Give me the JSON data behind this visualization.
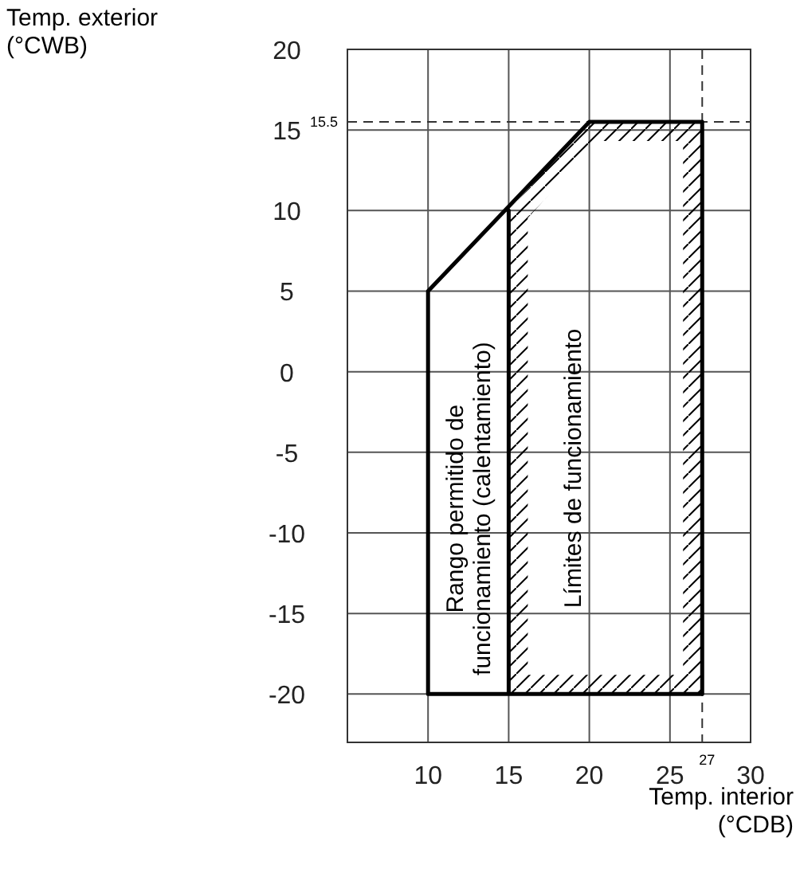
{
  "chart_data": {
    "type": "line",
    "xlabel": "Temp. interior\n(°CDB)",
    "ylabel": "Temp. exterior\n(°CWB)",
    "xlim": [
      5,
      30
    ],
    "ylim": [
      -23,
      20
    ],
    "xticks": [
      10,
      15,
      20,
      25,
      30
    ],
    "yticks": [
      -20,
      -15,
      -10,
      -5,
      0,
      5,
      10,
      15,
      20
    ],
    "grid": true,
    "series": [
      {
        "color": "#000000",
        "x": [
          15,
          15,
          10,
          10,
          20,
          27,
          27,
          15
        ],
        "values": [
          10,
          -20,
          -20,
          5,
          15.5,
          15.5,
          -20,
          -20
        ]
      }
    ],
    "ref_lines": [
      {
        "axis": "y",
        "value": 15.5,
        "label": "15.5",
        "line_style": "dashed",
        "color": "#333333"
      },
      {
        "axis": "x",
        "value": 27,
        "label": "27",
        "line_style": "dashed",
        "color": "#333333"
      }
    ],
    "annotations": [
      "Rango permitido de\nfuncionamiento (calentamiento)",
      "Límites de funcionamiento"
    ]
  }
}
